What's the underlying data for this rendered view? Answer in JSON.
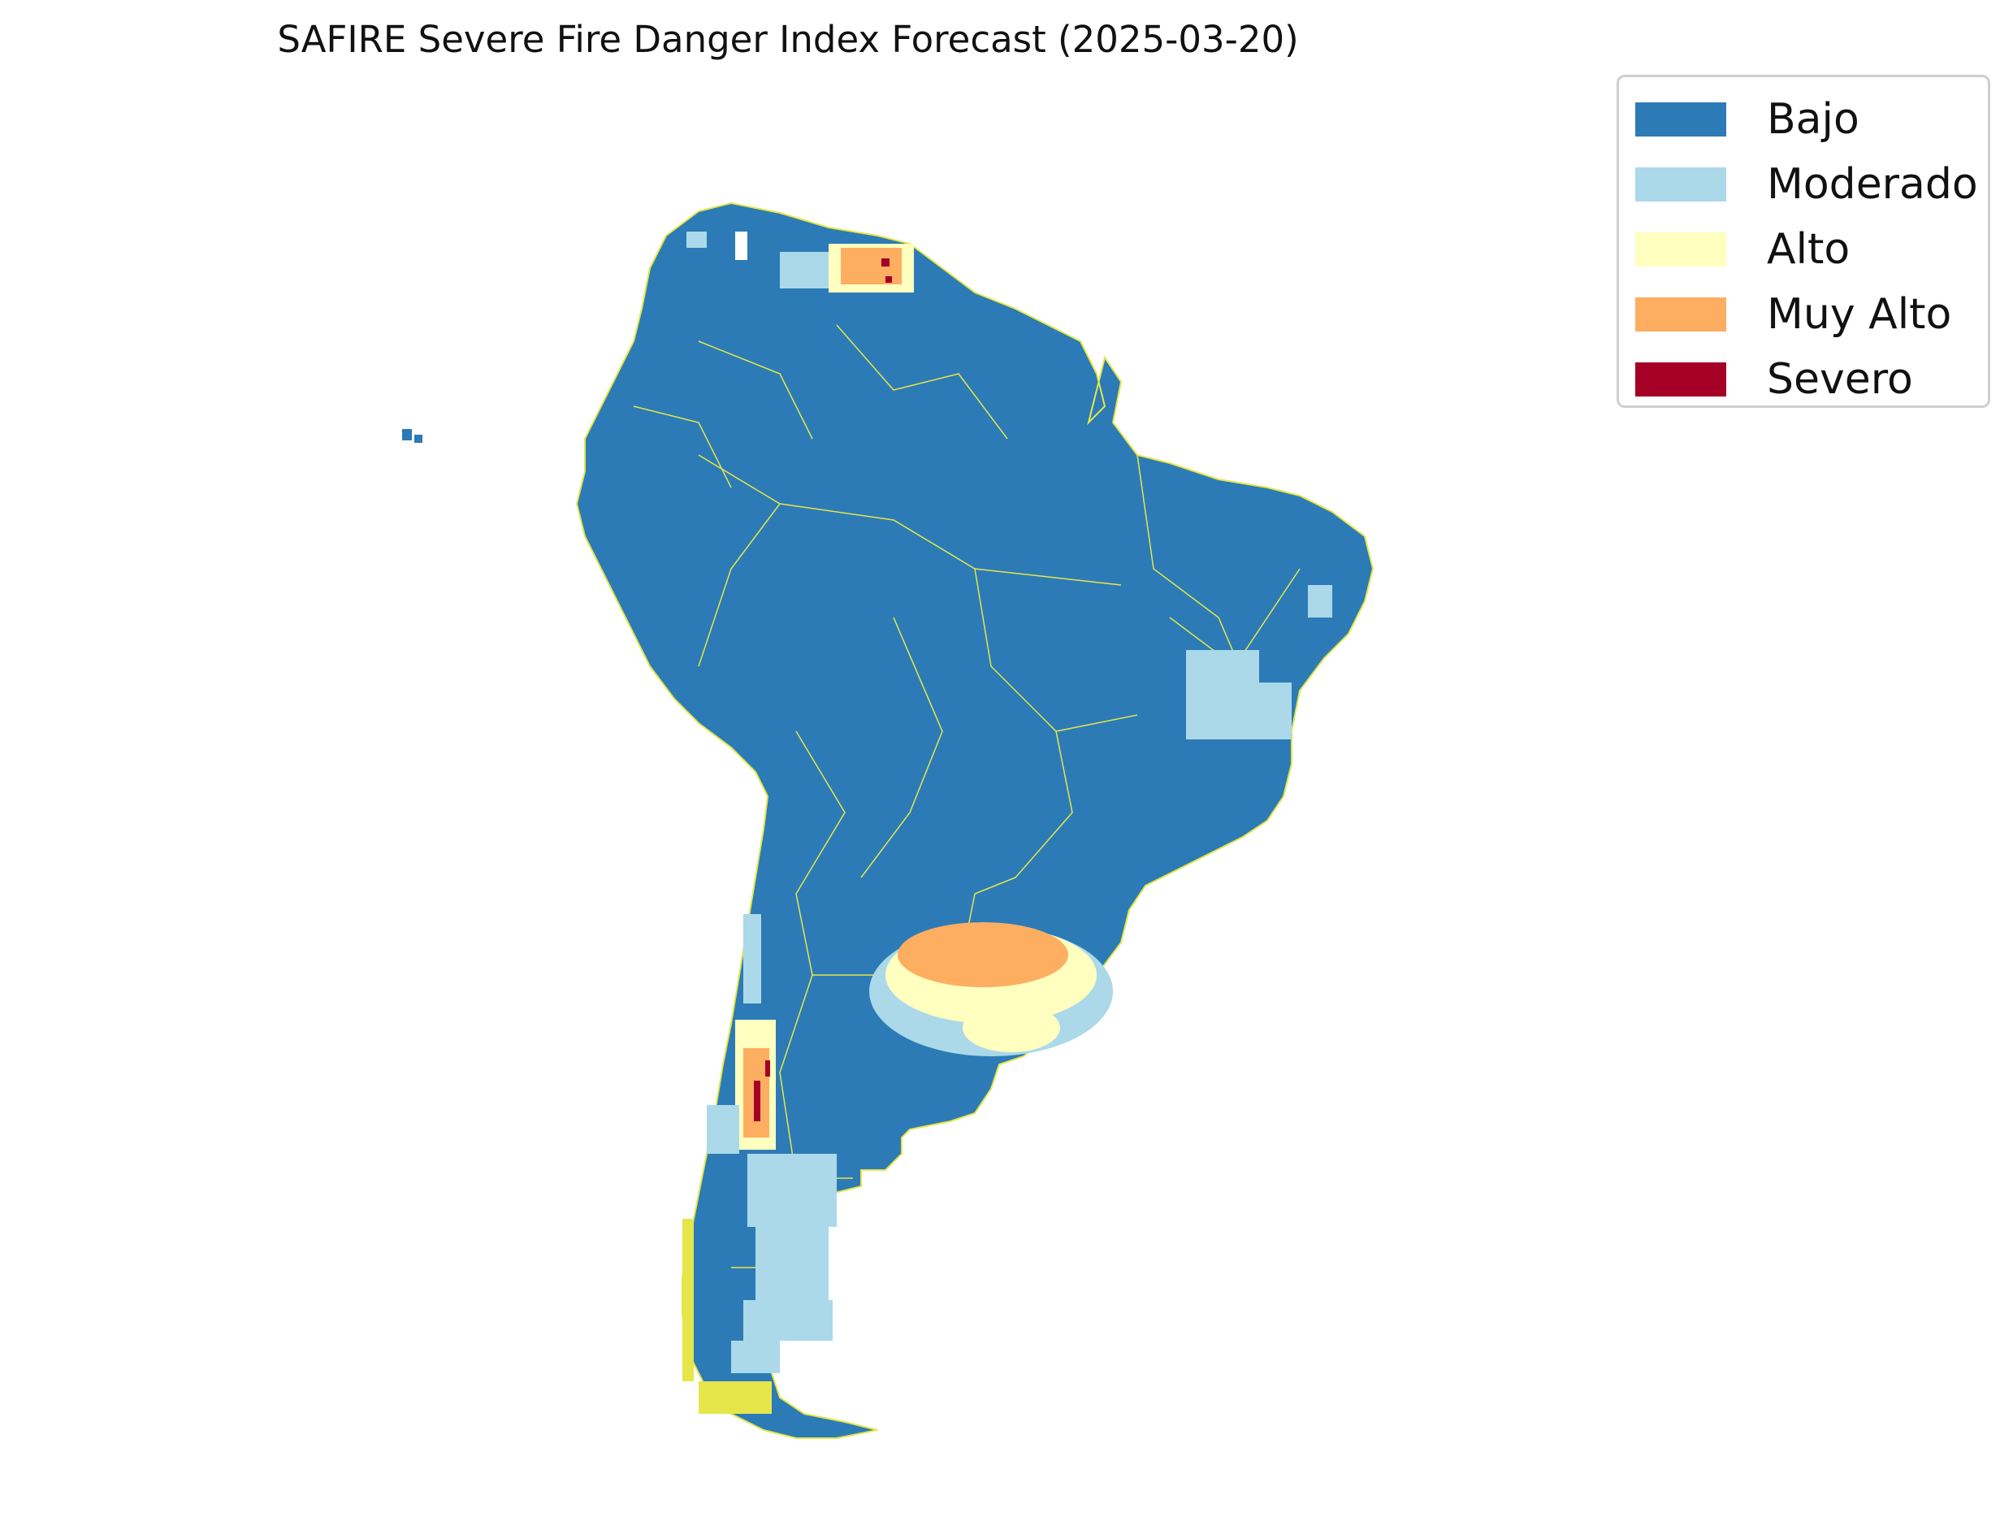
{
  "title": "SAFIRE Severe Fire Danger Index Forecast (2025-03-20)",
  "legend": {
    "items": [
      {
        "label": "Bajo",
        "color": "#2c7bb6"
      },
      {
        "label": "Moderado",
        "color": "#abd9e9"
      },
      {
        "label": "Alto",
        "color": "#ffffbf"
      },
      {
        "label": "Muy Alto",
        "color": "#fdae61"
      },
      {
        "label": "Severo",
        "color": "#a50026"
      }
    ]
  },
  "colors": {
    "border_lines": "#e6e64a",
    "background": "#ffffff"
  }
}
